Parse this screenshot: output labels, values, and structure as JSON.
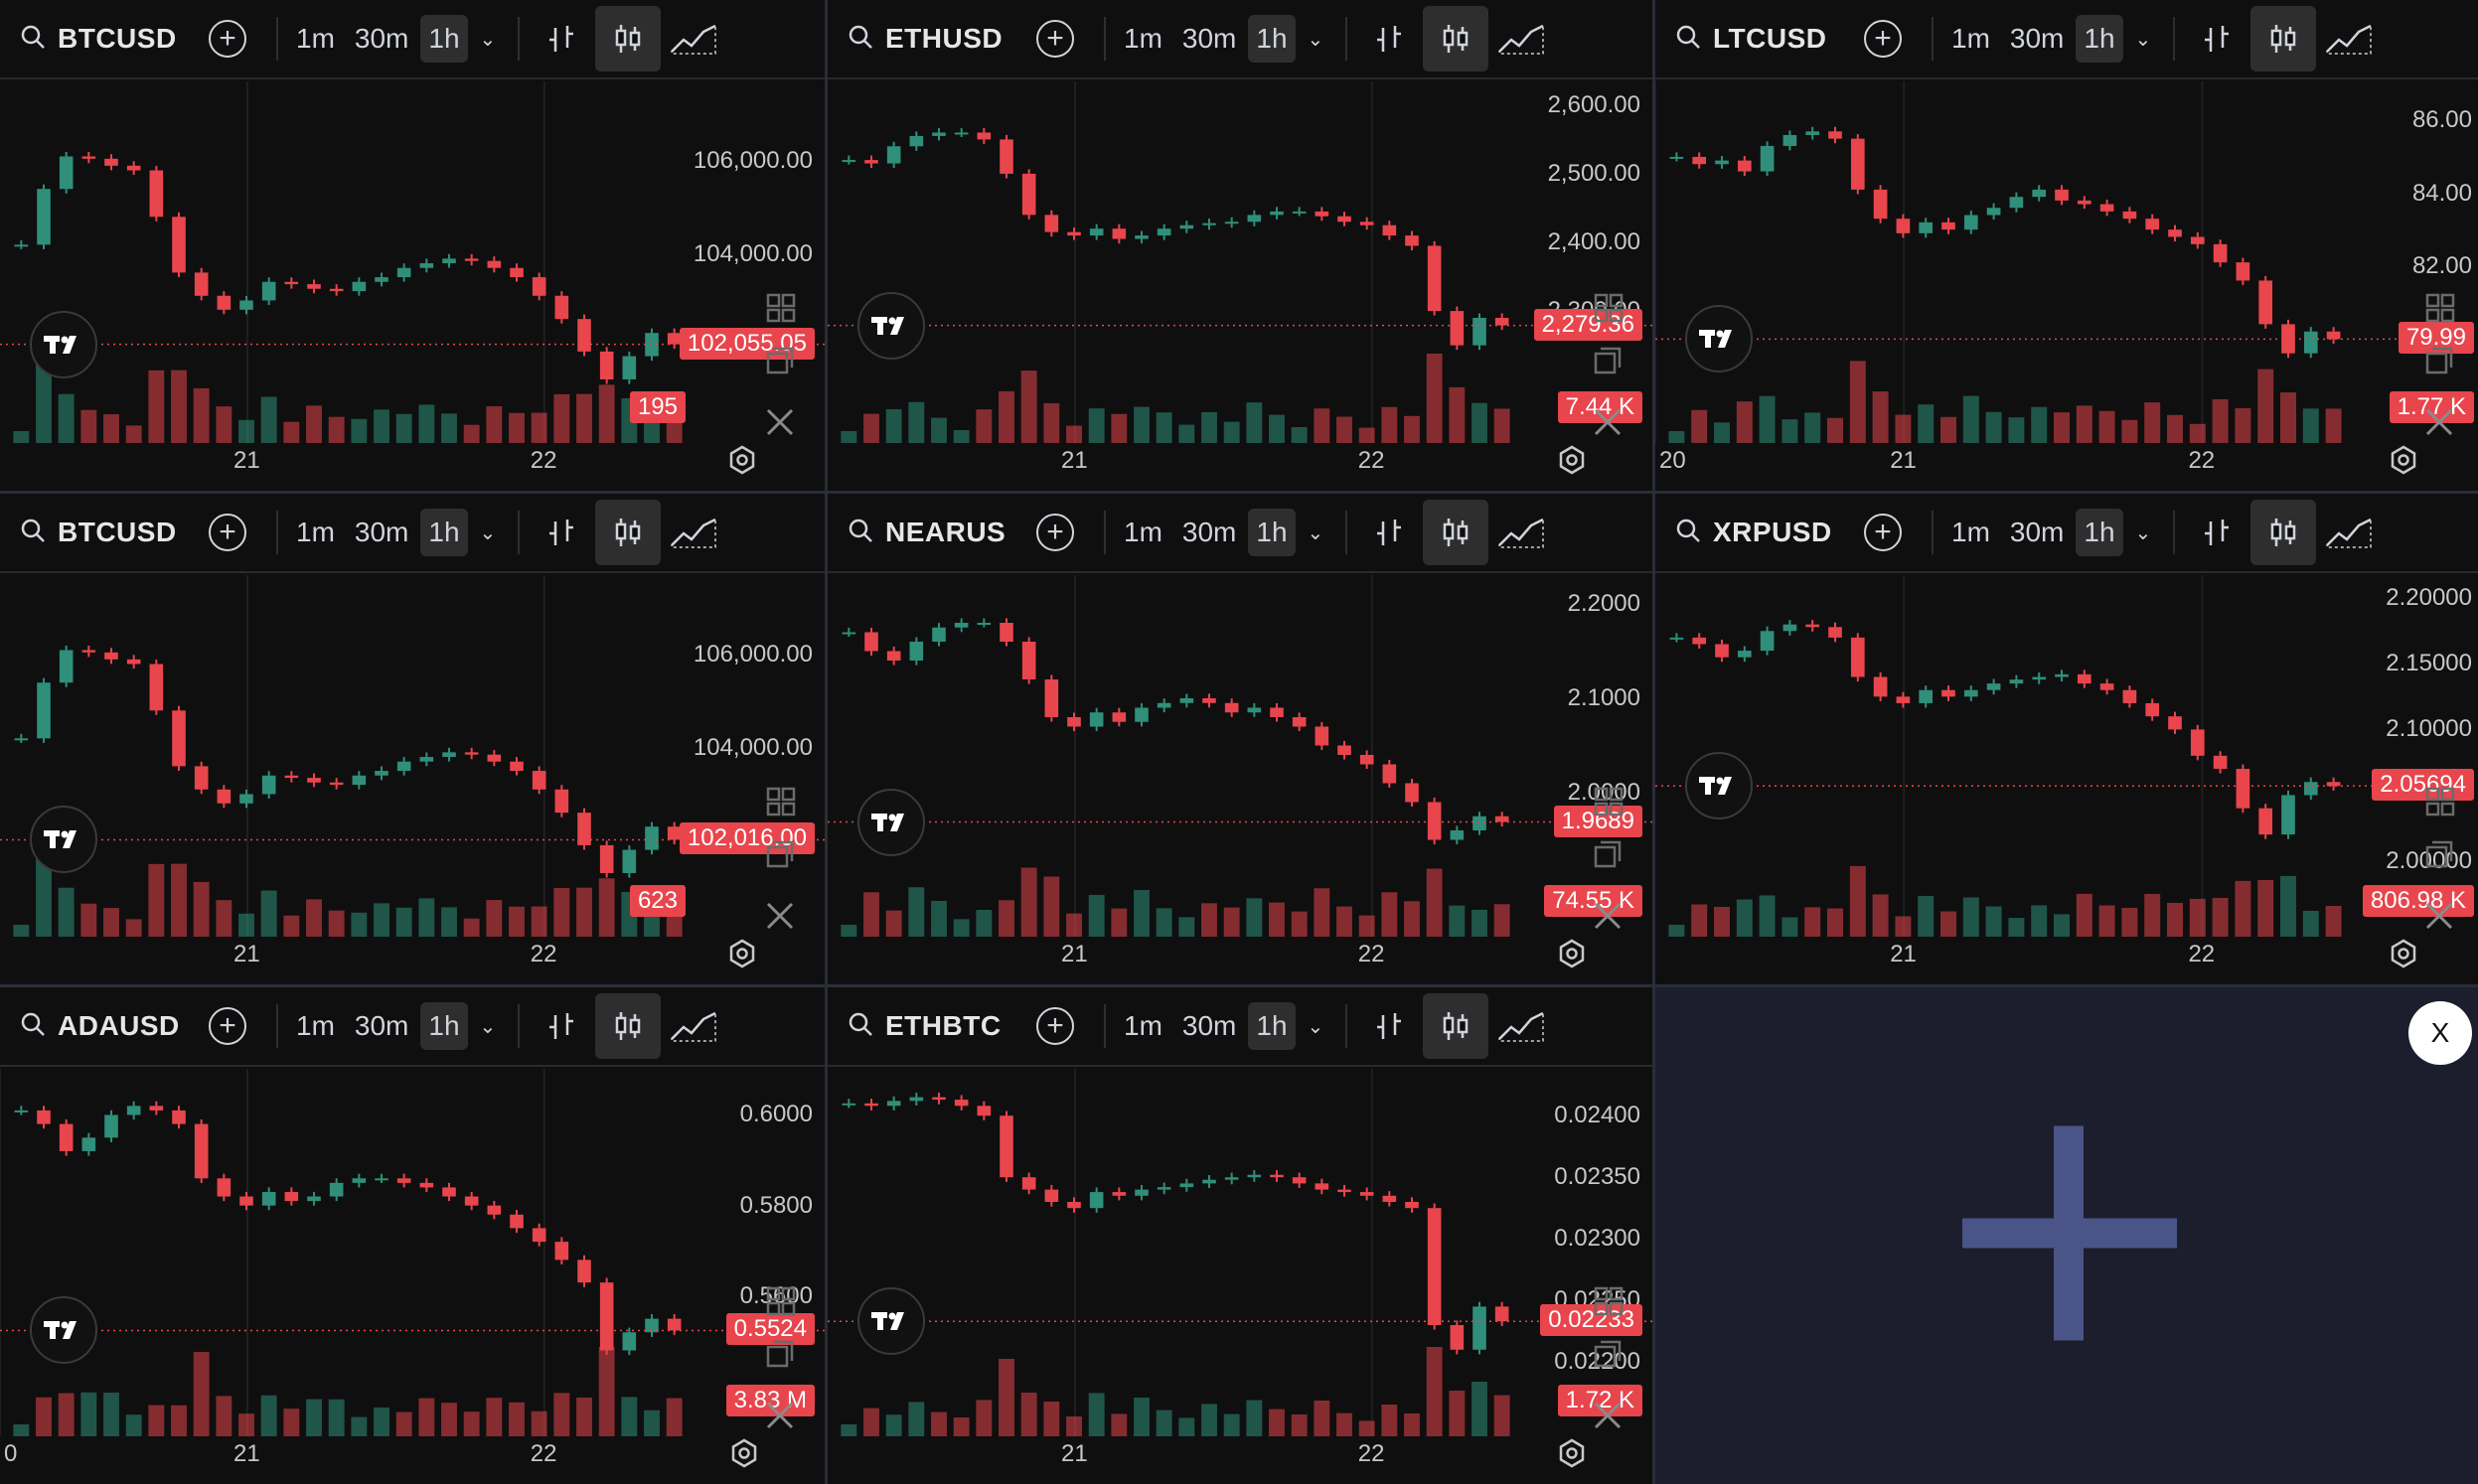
{
  "layout_name": "multi-chart grid",
  "intervals": [
    "1m",
    "30m",
    "1h"
  ],
  "active_interval": "1h",
  "colors": {
    "up": "#2f8f7a",
    "down": "#e8454d",
    "bg": "#0f0f0f",
    "add_panel_bg": "#1c1e2e",
    "plus": "#4b5487"
  },
  "panels": [
    {
      "symbol": "BTCUSD",
      "price_ticks": [
        "106,000.00",
        "104,000.00"
      ],
      "time_ticks": [
        "21",
        "22"
      ],
      "last_price": "102,055.05",
      "volume_badge": "195",
      "chart_data": {
        "type": "candlestick",
        "ylim": [
          101000,
          107500
        ],
        "closes": [
          104200,
          105400,
          106100,
          106050,
          105900,
          105800,
          104800,
          103600,
          103100,
          102800,
          103000,
          103400,
          103350,
          103250,
          103200,
          103400,
          103500,
          103700,
          103800,
          103900,
          103850,
          103700,
          103500,
          103100,
          102600,
          101900,
          101300,
          101800,
          102300,
          102055
        ]
      }
    },
    {
      "symbol": "ETHUSD",
      "price_ticks": [
        "2,600.00",
        "2,500.00",
        "2,400.00",
        "2,300.00"
      ],
      "time_ticks": [
        "21",
        "22"
      ],
      "last_price": "2,279.36",
      "volume_badge": "7.44 K",
      "chart_data": {
        "type": "candlestick",
        "ylim": [
          2180,
          2620
        ],
        "closes": [
          2520,
          2515,
          2540,
          2555,
          2560,
          2560,
          2550,
          2500,
          2440,
          2415,
          2410,
          2420,
          2405,
          2410,
          2420,
          2425,
          2428,
          2430,
          2440,
          2445,
          2445,
          2438,
          2430,
          2425,
          2410,
          2395,
          2300,
          2250,
          2290,
          2279
        ]
      }
    },
    {
      "symbol": "LTCUSD",
      "price_ticks": [
        "86.00",
        "84.00",
        "82.00"
      ],
      "time_ticks": [
        "20",
        "21",
        "22"
      ],
      "last_price": "79.99",
      "volume_badge": "1.77 K",
      "chart_data": {
        "type": "candlestick",
        "ylim": [
          78.5,
          86.8
        ],
        "closes": [
          85.0,
          84.8,
          84.9,
          84.6,
          85.3,
          85.6,
          85.7,
          85.5,
          84.1,
          83.3,
          82.9,
          83.2,
          83.0,
          83.4,
          83.6,
          83.9,
          84.1,
          83.8,
          83.7,
          83.5,
          83.3,
          83.0,
          82.8,
          82.6,
          82.1,
          81.6,
          80.4,
          79.6,
          80.2,
          79.99
        ]
      }
    },
    {
      "symbol": "BTCUSD",
      "price_ticks": [
        "106,000.00",
        "104,000.00"
      ],
      "time_ticks": [
        "21",
        "22"
      ],
      "last_price": "102,016.00",
      "volume_badge": "623",
      "chart_data": {
        "type": "candlestick",
        "ylim": [
          101000,
          107500
        ],
        "closes": [
          104200,
          105400,
          106100,
          106050,
          105900,
          105800,
          104800,
          103600,
          103100,
          102800,
          103000,
          103400,
          103350,
          103250,
          103200,
          103400,
          103500,
          103700,
          103800,
          103900,
          103850,
          103700,
          103500,
          103100,
          102600,
          101900,
          101300,
          101800,
          102300,
          102016
        ]
      }
    },
    {
      "symbol": "NEARUS",
      "price_ticks": [
        "2.2000",
        "2.1000",
        "2.0000"
      ],
      "time_ticks": [
        "21",
        "22"
      ],
      "last_price": "1.9689",
      "volume_badge": "74.55 K",
      "chart_data": {
        "type": "candlestick",
        "ylim": [
          1.9,
          2.22
        ],
        "closes": [
          2.17,
          2.15,
          2.14,
          2.16,
          2.175,
          2.18,
          2.18,
          2.16,
          2.12,
          2.08,
          2.07,
          2.085,
          2.075,
          2.09,
          2.095,
          2.1,
          2.095,
          2.085,
          2.09,
          2.08,
          2.07,
          2.05,
          2.04,
          2.03,
          2.01,
          1.99,
          1.95,
          1.96,
          1.975,
          1.9689
        ]
      }
    },
    {
      "symbol": "XRPUSD",
      "price_ticks": [
        "2.20000",
        "2.15000",
        "2.10000",
        "2.00000"
      ],
      "time_ticks": [
        "21",
        "22"
      ],
      "last_price": "2.05694",
      "volume_badge": "806.98 K",
      "chart_data": {
        "type": "candlestick",
        "ylim": [
          1.98,
          2.21
        ],
        "closes": [
          2.17,
          2.165,
          2.155,
          2.16,
          2.175,
          2.18,
          2.178,
          2.17,
          2.14,
          2.125,
          2.12,
          2.13,
          2.125,
          2.13,
          2.135,
          2.138,
          2.14,
          2.142,
          2.135,
          2.13,
          2.12,
          2.11,
          2.1,
          2.08,
          2.07,
          2.04,
          2.02,
          2.05,
          2.06,
          2.05694
        ]
      }
    },
    {
      "symbol": "ADAUSD",
      "price_ticks": [
        "0.6000",
        "0.5800",
        "0.5600"
      ],
      "time_ticks": [
        "0",
        "21",
        "22"
      ],
      "last_price": "0.5524",
      "volume_badge": "3.83 M",
      "chart_data": {
        "type": "candlestick",
        "ylim": [
          0.54,
          0.608
        ],
        "closes": [
          0.601,
          0.598,
          0.592,
          0.595,
          0.6,
          0.602,
          0.601,
          0.598,
          0.586,
          0.582,
          0.58,
          0.583,
          0.581,
          0.582,
          0.585,
          0.586,
          0.586,
          0.585,
          0.584,
          0.582,
          0.58,
          0.578,
          0.575,
          0.572,
          0.568,
          0.563,
          0.548,
          0.552,
          0.555,
          0.5524
        ]
      }
    },
    {
      "symbol": "ETHBTC",
      "price_ticks": [
        "0.02400",
        "0.02350",
        "0.02300",
        "0.02250",
        "0.02200"
      ],
      "time_ticks": [
        "21",
        "22"
      ],
      "last_price": "0.02233",
      "volume_badge": "1.72 K",
      "chart_data": {
        "type": "candlestick",
        "ylim": [
          0.0218,
          0.0243
        ],
        "closes": [
          0.0241,
          0.02408,
          0.02412,
          0.02415,
          0.02413,
          0.02408,
          0.024,
          0.0235,
          0.0234,
          0.0233,
          0.02325,
          0.02338,
          0.02335,
          0.0234,
          0.02342,
          0.02345,
          0.02348,
          0.0235,
          0.02352,
          0.0235,
          0.02345,
          0.0234,
          0.02338,
          0.02335,
          0.0233,
          0.02325,
          0.0223,
          0.0221,
          0.02245,
          0.02233
        ]
      }
    }
  ],
  "add_chart_panel": {
    "close_label": "X"
  }
}
